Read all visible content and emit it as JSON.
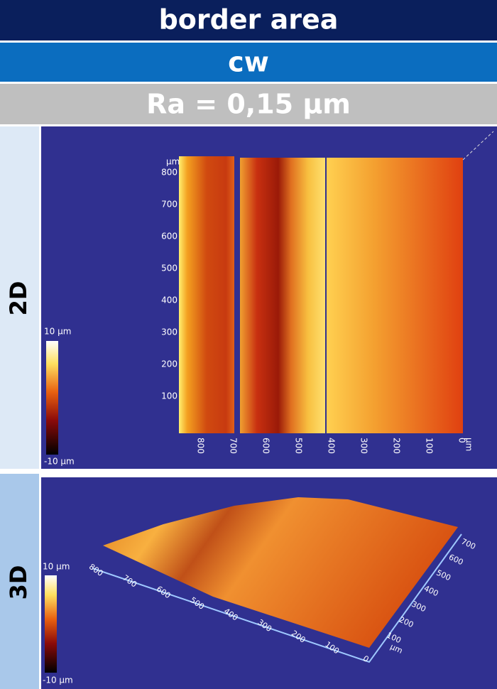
{
  "header": {
    "title": "border area",
    "mode": "cw",
    "roughness": "Ra = 0,15 µm"
  },
  "panels": [
    {
      "label": "2D",
      "colorbar": {
        "max_label": "10 µm",
        "min_label": "-10 µm"
      },
      "y_axis": {
        "unit": "µm",
        "ticks": [
          "800",
          "700",
          "600",
          "500",
          "400",
          "300",
          "200",
          "100"
        ]
      },
      "x_axis": {
        "unit": "µm",
        "ticks": [
          "800",
          "700",
          "600",
          "500",
          "400",
          "300",
          "200",
          "100",
          "0"
        ]
      }
    },
    {
      "label": "3D",
      "colorbar": {
        "max_label": "10 µm",
        "min_label": "-10 µm"
      },
      "x_axis": {
        "unit": "µm",
        "ticks": [
          "800",
          "700",
          "600",
          "500",
          "400",
          "300",
          "200",
          "100",
          "0"
        ]
      },
      "y_axis": {
        "unit": "µm",
        "ticks": [
          "700",
          "600",
          "500",
          "400",
          "300",
          "200",
          "100"
        ]
      }
    }
  ]
}
